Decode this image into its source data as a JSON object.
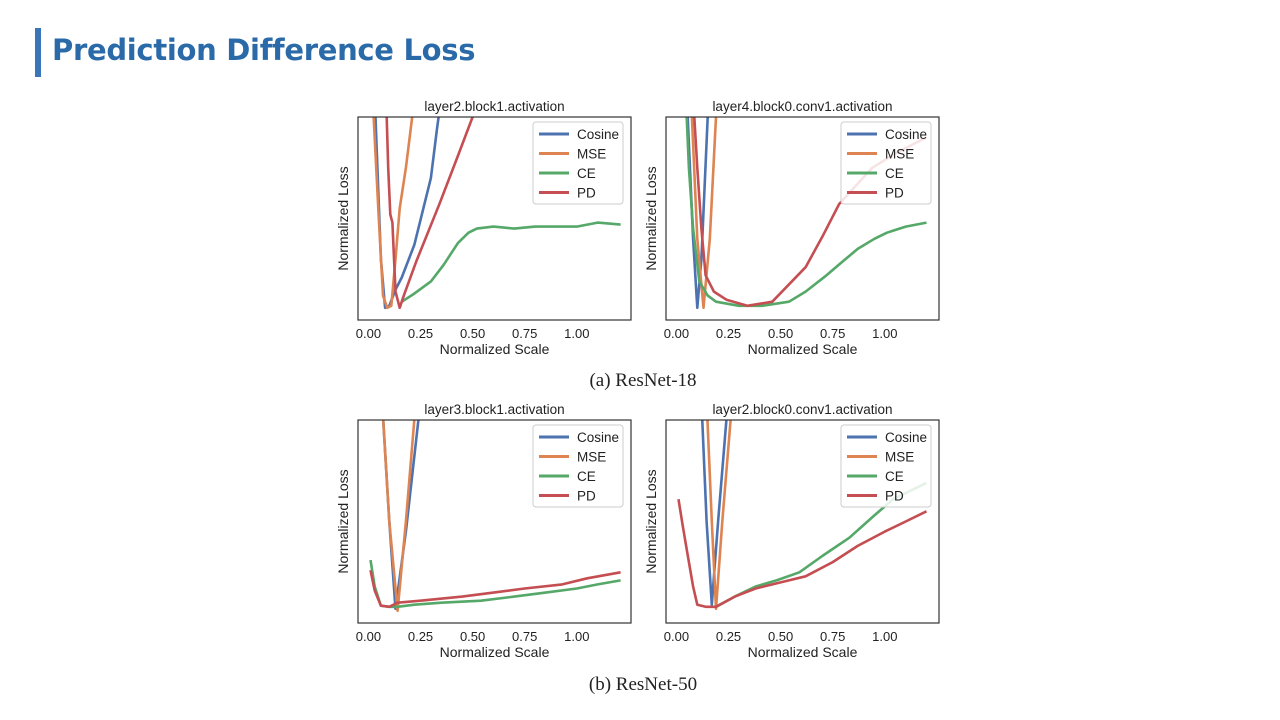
{
  "slide": {
    "title": "Prediction Difference Loss",
    "accent_color": "#3a74b9",
    "captions": [
      "(a) ResNet-18",
      "(b) ResNet-50"
    ]
  },
  "chart_data": [
    {
      "type": "line",
      "title": "layer2.block1.activation",
      "xlabel": "Normalized Scale",
      "ylabel": "Normalized Loss",
      "xlim": [
        -0.05,
        1.26
      ],
      "ylim": [
        0,
        1
      ],
      "xticks": [
        "0.00",
        "0.25",
        "0.50",
        "0.75",
        "1.00"
      ],
      "yticks": [],
      "grid": false,
      "legend": "top-right",
      "series": [
        {
          "name": "Cosine",
          "color": "#4c72b0",
          "x": [
            0.03,
            0.06,
            0.08,
            0.1,
            0.13,
            0.16,
            0.22,
            0.3,
            0.33,
            0.35
          ],
          "y": [
            1.1,
            0.3,
            0.06,
            0.07,
            0.15,
            0.21,
            0.37,
            0.7,
            0.95,
            1.1
          ]
        },
        {
          "name": "MSE",
          "color": "#dd8452",
          "x": [
            0.02,
            0.05,
            0.07,
            0.09,
            0.11,
            0.13,
            0.15,
            0.18,
            0.21,
            0.23
          ],
          "y": [
            1.1,
            0.5,
            0.12,
            0.06,
            0.07,
            0.3,
            0.55,
            0.75,
            1.0,
            1.1
          ]
        },
        {
          "name": "CE",
          "color": "#55a868",
          "x": [
            0.16,
            0.22,
            0.3,
            0.36,
            0.43,
            0.48,
            0.52,
            0.6,
            0.7,
            0.8,
            0.9,
            1.0,
            1.1,
            1.21
          ],
          "y": [
            0.09,
            0.13,
            0.19,
            0.27,
            0.38,
            0.43,
            0.45,
            0.46,
            0.45,
            0.46,
            0.46,
            0.46,
            0.48,
            0.47
          ]
        },
        {
          "name": "PD",
          "color": "#c44e52",
          "x": [
            0.085,
            0.095,
            0.105,
            0.115,
            0.13,
            0.15,
            0.17,
            0.23,
            0.34,
            0.43,
            0.5,
            0.52
          ],
          "y": [
            1.1,
            0.75,
            0.52,
            0.48,
            0.14,
            0.06,
            0.12,
            0.29,
            0.57,
            0.81,
            1.0,
            1.1
          ]
        }
      ]
    },
    {
      "type": "line",
      "title": "layer4.block0.conv1.activation",
      "xlabel": "Normalized Scale",
      "ylabel": "Normalized Loss",
      "xlim": [
        -0.05,
        1.26
      ],
      "ylim": [
        0,
        1
      ],
      "xticks": [
        "0.00",
        "0.25",
        "0.50",
        "0.75",
        "1.00"
      ],
      "yticks": [],
      "grid": false,
      "legend": "top-right",
      "series": [
        {
          "name": "Cosine",
          "color": "#4c72b0",
          "x": [
            0.05,
            0.08,
            0.1,
            0.12,
            0.15,
            0.16
          ],
          "y": [
            1.1,
            0.4,
            0.06,
            0.3,
            1.0,
            1.1
          ]
        },
        {
          "name": "MSE",
          "color": "#dd8452",
          "x": [
            0.07,
            0.1,
            0.13,
            0.16,
            0.19,
            0.2
          ],
          "y": [
            1.1,
            0.4,
            0.06,
            0.4,
            1.0,
            1.1
          ]
        },
        {
          "name": "CE",
          "color": "#55a868",
          "x": [
            0.045,
            0.06,
            0.08,
            0.11,
            0.15,
            0.19,
            0.3,
            0.41,
            0.54,
            0.62,
            0.72,
            0.8,
            0.87,
            0.95,
            1.01,
            1.1,
            1.2
          ],
          "y": [
            1.1,
            0.75,
            0.45,
            0.19,
            0.12,
            0.09,
            0.07,
            0.07,
            0.09,
            0.14,
            0.22,
            0.29,
            0.35,
            0.4,
            0.43,
            0.46,
            0.48
          ]
        },
        {
          "name": "PD",
          "color": "#c44e52",
          "x": [
            0.08,
            0.1,
            0.12,
            0.14,
            0.18,
            0.24,
            0.34,
            0.46,
            0.62,
            0.7,
            0.78,
            0.86,
            0.94,
            1.05,
            1.2
          ],
          "y": [
            1.1,
            0.75,
            0.45,
            0.22,
            0.14,
            0.1,
            0.07,
            0.09,
            0.26,
            0.41,
            0.57,
            0.66,
            0.75,
            0.82,
            0.9
          ]
        }
      ]
    },
    {
      "type": "line",
      "title": "layer3.block1.activation",
      "xlabel": "Normalized Scale",
      "ylabel": "Normalized Loss",
      "xlim": [
        -0.05,
        1.26
      ],
      "ylim": [
        0,
        1
      ],
      "xticks": [
        "0.00",
        "0.25",
        "0.50",
        "0.75",
        "1.00"
      ],
      "yticks": [],
      "grid": false,
      "legend": "top-right",
      "series": [
        {
          "name": "Cosine",
          "color": "#4c72b0",
          "x": [
            0.065,
            0.1,
            0.13,
            0.18,
            0.24,
            0.25
          ],
          "y": [
            1.1,
            0.5,
            0.07,
            0.45,
            1.0,
            1.1
          ]
        },
        {
          "name": "MSE",
          "color": "#dd8452",
          "x": [
            0.065,
            0.1,
            0.14,
            0.18,
            0.22,
            0.23
          ],
          "y": [
            1.1,
            0.5,
            0.06,
            0.5,
            1.0,
            1.1
          ]
        },
        {
          "name": "CE",
          "color": "#55a868",
          "x": [
            0.01,
            0.03,
            0.06,
            0.1,
            0.14,
            0.22,
            0.35,
            0.54,
            0.7,
            0.85,
            1.0,
            1.1,
            1.21
          ],
          "y": [
            0.31,
            0.18,
            0.085,
            0.08,
            0.08,
            0.09,
            0.1,
            0.11,
            0.13,
            0.15,
            0.17,
            0.19,
            0.21
          ]
        },
        {
          "name": "PD",
          "color": "#c44e52",
          "x": [
            0.01,
            0.03,
            0.06,
            0.1,
            0.14,
            0.25,
            0.45,
            0.6,
            0.75,
            0.93,
            1.05,
            1.21
          ],
          "y": [
            0.26,
            0.16,
            0.085,
            0.08,
            0.1,
            0.11,
            0.13,
            0.15,
            0.17,
            0.19,
            0.22,
            0.25
          ]
        }
      ]
    },
    {
      "type": "line",
      "title": "layer2.block0.conv1.activation",
      "xlabel": "Normalized Scale",
      "ylabel": "Normalized Loss",
      "xlim": [
        -0.05,
        1.26
      ],
      "ylim": [
        0,
        1
      ],
      "xticks": [
        "0.00",
        "0.25",
        "0.50",
        "0.75",
        "1.00"
      ],
      "yticks": [],
      "grid": false,
      "legend": "top-right",
      "series": [
        {
          "name": "Cosine",
          "color": "#4c72b0",
          "x": [
            0.12,
            0.145,
            0.17,
            0.2,
            0.24,
            0.25
          ],
          "y": [
            1.1,
            0.5,
            0.09,
            0.5,
            1.0,
            1.1
          ]
        },
        {
          "name": "MSE",
          "color": "#dd8452",
          "x": [
            0.145,
            0.17,
            0.19,
            0.22,
            0.26,
            0.27
          ],
          "y": [
            1.1,
            0.5,
            0.07,
            0.5,
            1.0,
            1.1
          ]
        },
        {
          "name": "CE",
          "color": "#55a868",
          "x": [
            0.19,
            0.28,
            0.38,
            0.48,
            0.59,
            0.7,
            0.83,
            0.95,
            1.04,
            1.12,
            1.2
          ],
          "y": [
            0.08,
            0.13,
            0.18,
            0.21,
            0.25,
            0.33,
            0.42,
            0.53,
            0.61,
            0.65,
            0.69
          ]
        },
        {
          "name": "PD",
          "color": "#c44e52",
          "x": [
            0.01,
            0.03,
            0.05,
            0.08,
            0.1,
            0.14,
            0.19,
            0.28,
            0.38,
            0.5,
            0.62,
            0.75,
            0.87,
            1.0,
            1.1,
            1.2
          ],
          "y": [
            0.61,
            0.48,
            0.36,
            0.18,
            0.09,
            0.08,
            0.08,
            0.13,
            0.17,
            0.2,
            0.23,
            0.3,
            0.38,
            0.45,
            0.5,
            0.55
          ]
        }
      ]
    }
  ]
}
